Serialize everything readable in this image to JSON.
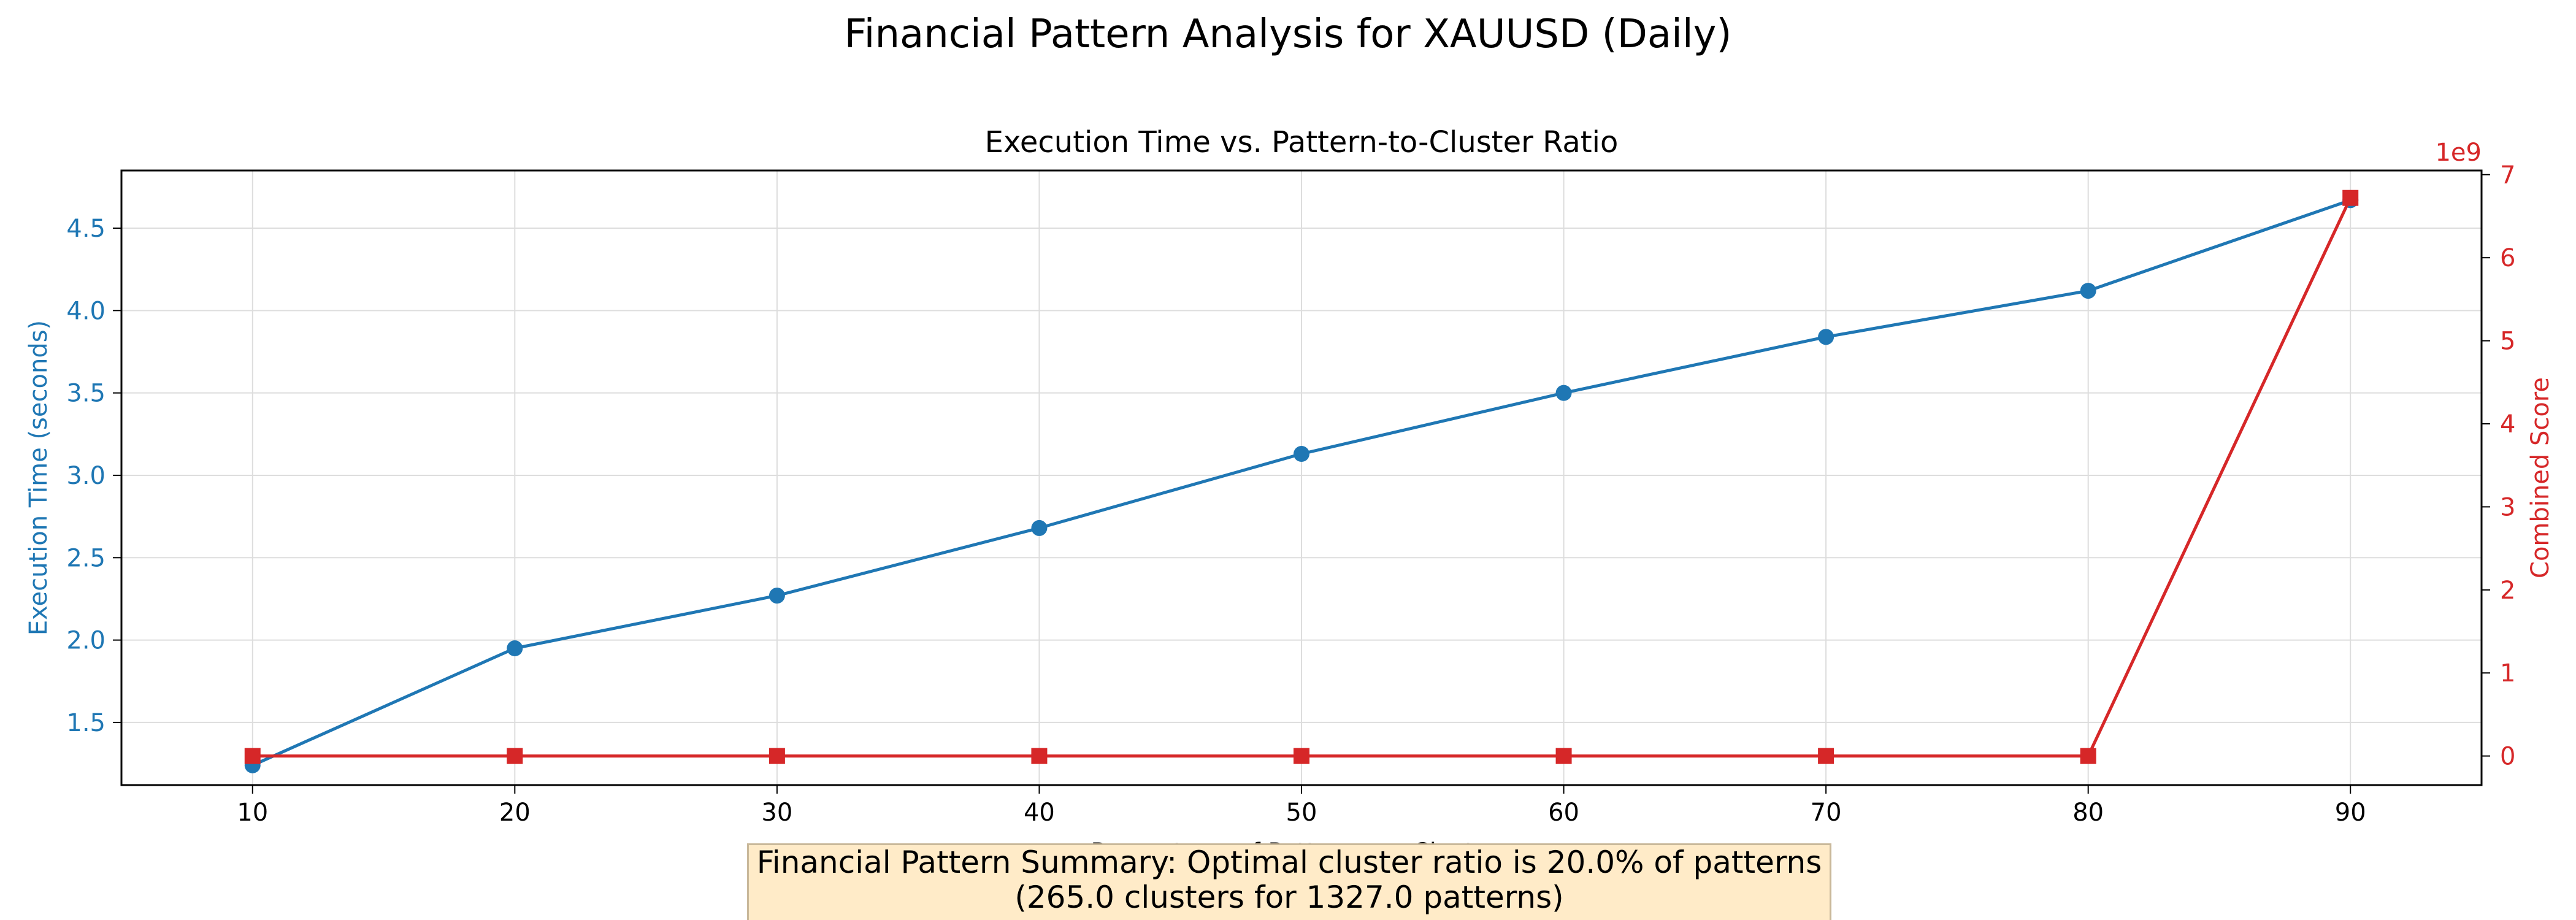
{
  "suptitle": "Financial Pattern Analysis for XAUUSD (Daily)",
  "summary": {
    "line1": "Financial Pattern Summary: Optimal cluster ratio is 20.0% of patterns",
    "line2": "(265.0 clusters for 1327.0 patterns)"
  },
  "chart_data": {
    "type": "line",
    "title": "Execution Time vs. Pattern-to-Cluster Ratio",
    "xlabel": "Percentage of Patterns as Clusters",
    "ylabel": "Execution Time (seconds)",
    "y2label": "Combined Score",
    "y2_offset_label": "1e9",
    "x": [
      10,
      20,
      30,
      40,
      50,
      60,
      70,
      80,
      90
    ],
    "xlim": [
      5,
      95
    ],
    "ylim": [
      1.12,
      4.85
    ],
    "y2lim": [
      -0.35,
      7.05
    ],
    "xticks": [
      10,
      20,
      30,
      40,
      50,
      60,
      70,
      80,
      90
    ],
    "yticks": [
      1.5,
      2.0,
      2.5,
      3.0,
      3.5,
      4.0,
      4.5
    ],
    "y2ticks": [
      0,
      1,
      2,
      3,
      4,
      5,
      6,
      7
    ],
    "grid": true,
    "series": [
      {
        "axis": "left",
        "color": "#1f77b4",
        "marker": "circle",
        "values": [
          1.24,
          1.95,
          2.27,
          2.68,
          3.13,
          3.5,
          3.84,
          4.12,
          4.67
        ]
      },
      {
        "axis": "right",
        "color": "#d62728",
        "marker": "square",
        "values": [
          0,
          0,
          0,
          0,
          0,
          0,
          0,
          0,
          6.72
        ]
      }
    ]
  }
}
